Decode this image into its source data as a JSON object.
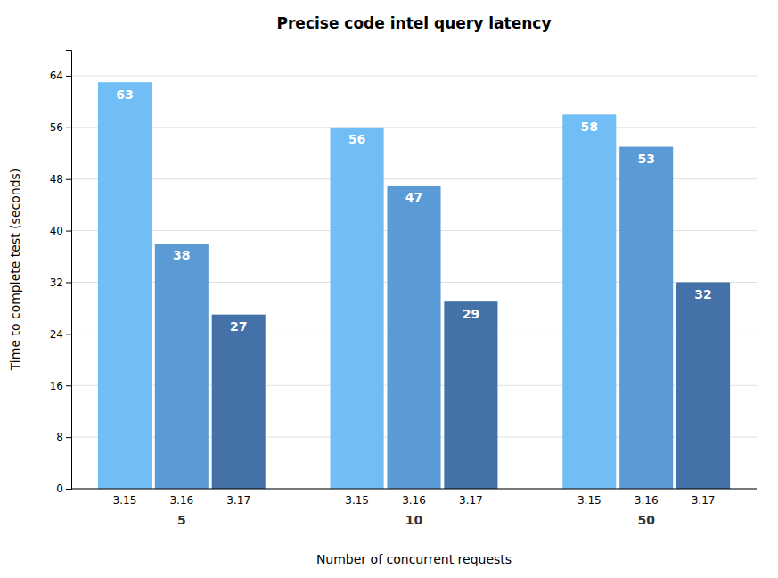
{
  "chart_data": {
    "type": "bar",
    "title": "Precise code intel query latency",
    "xlabel": "Number of concurrent requests",
    "ylabel": "Time to complete test (seconds)",
    "categories": [
      "5",
      "10",
      "50"
    ],
    "series": [
      {
        "name": "3.15",
        "color": "#70bef5",
        "values": [
          63,
          56,
          58
        ]
      },
      {
        "name": "3.16",
        "color": "#5b9bd5",
        "values": [
          38,
          47,
          53
        ]
      },
      {
        "name": "3.17",
        "color": "#4472a8",
        "values": [
          27,
          29,
          32
        ]
      }
    ],
    "ylim": [
      0,
      68
    ],
    "yticks": [
      0,
      8,
      16,
      24,
      32,
      40,
      48,
      56,
      64
    ],
    "grid": true,
    "data_labels": true
  }
}
